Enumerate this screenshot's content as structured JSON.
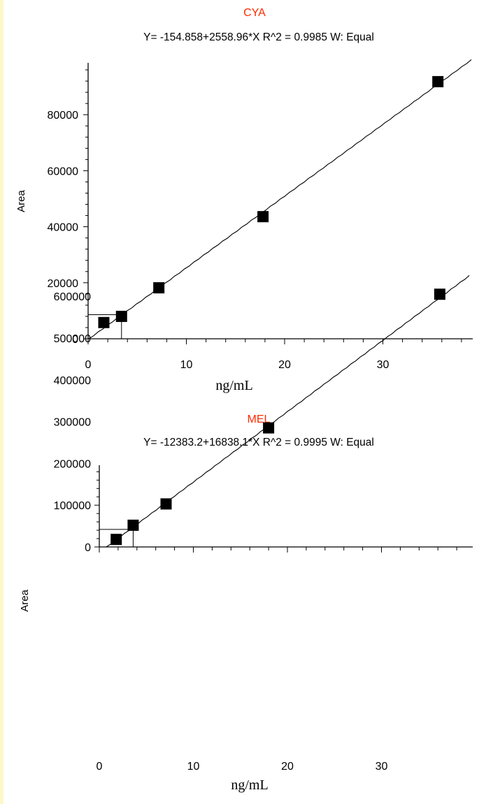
{
  "chart_data": [
    {
      "type": "scatter",
      "title": "CYA",
      "subtitle": "Y= -154.858+2558.96*X  R^2 = 0.9985   W: Equal",
      "xlabel": "ng/mL",
      "ylabel": "Area",
      "xlim": [
        0,
        39
      ],
      "ylim": [
        0,
        100000
      ],
      "xticks": [
        "0",
        "10",
        "20",
        "30"
      ],
      "yticks": [
        "0",
        "20000",
        "40000",
        "60000",
        "80000"
      ],
      "points": [
        {
          "x": 1.6,
          "y": 5800
        },
        {
          "x": 3.4,
          "y": 8000
        },
        {
          "x": 7.2,
          "y": 18200
        },
        {
          "x": 17.8,
          "y": 43600
        },
        {
          "x": 35.6,
          "y": 91800
        }
      ],
      "fit": {
        "intercept": -154.858,
        "slope": 2558.96
      },
      "crosshair": {
        "x": 3.4,
        "y": 8600
      }
    },
    {
      "type": "scatter",
      "title": "MEL",
      "subtitle": "Y= -12383.2+16838.1*X  R^2 = 0.9995   W: Equal",
      "xlabel": "ng/mL",
      "ylabel": "Area",
      "xlim": [
        0,
        39.5
      ],
      "ylim": [
        0,
        650000
      ],
      "xticks": [
        "0",
        "10",
        "20",
        "30"
      ],
      "yticks": [
        "0",
        "100000",
        "200000",
        "300000",
        "400000",
        "500000",
        "600000"
      ],
      "points": [
        {
          "x": 1.8,
          "y": 18000
        },
        {
          "x": 3.6,
          "y": 52000
        },
        {
          "x": 7.1,
          "y": 103000
        },
        {
          "x": 18.0,
          "y": 285000
        },
        {
          "x": 36.2,
          "y": 605000
        }
      ],
      "fit": {
        "intercept": -12383.2,
        "slope": 16838.1
      },
      "crosshair": {
        "x": 3.6,
        "y": 42000
      }
    }
  ]
}
